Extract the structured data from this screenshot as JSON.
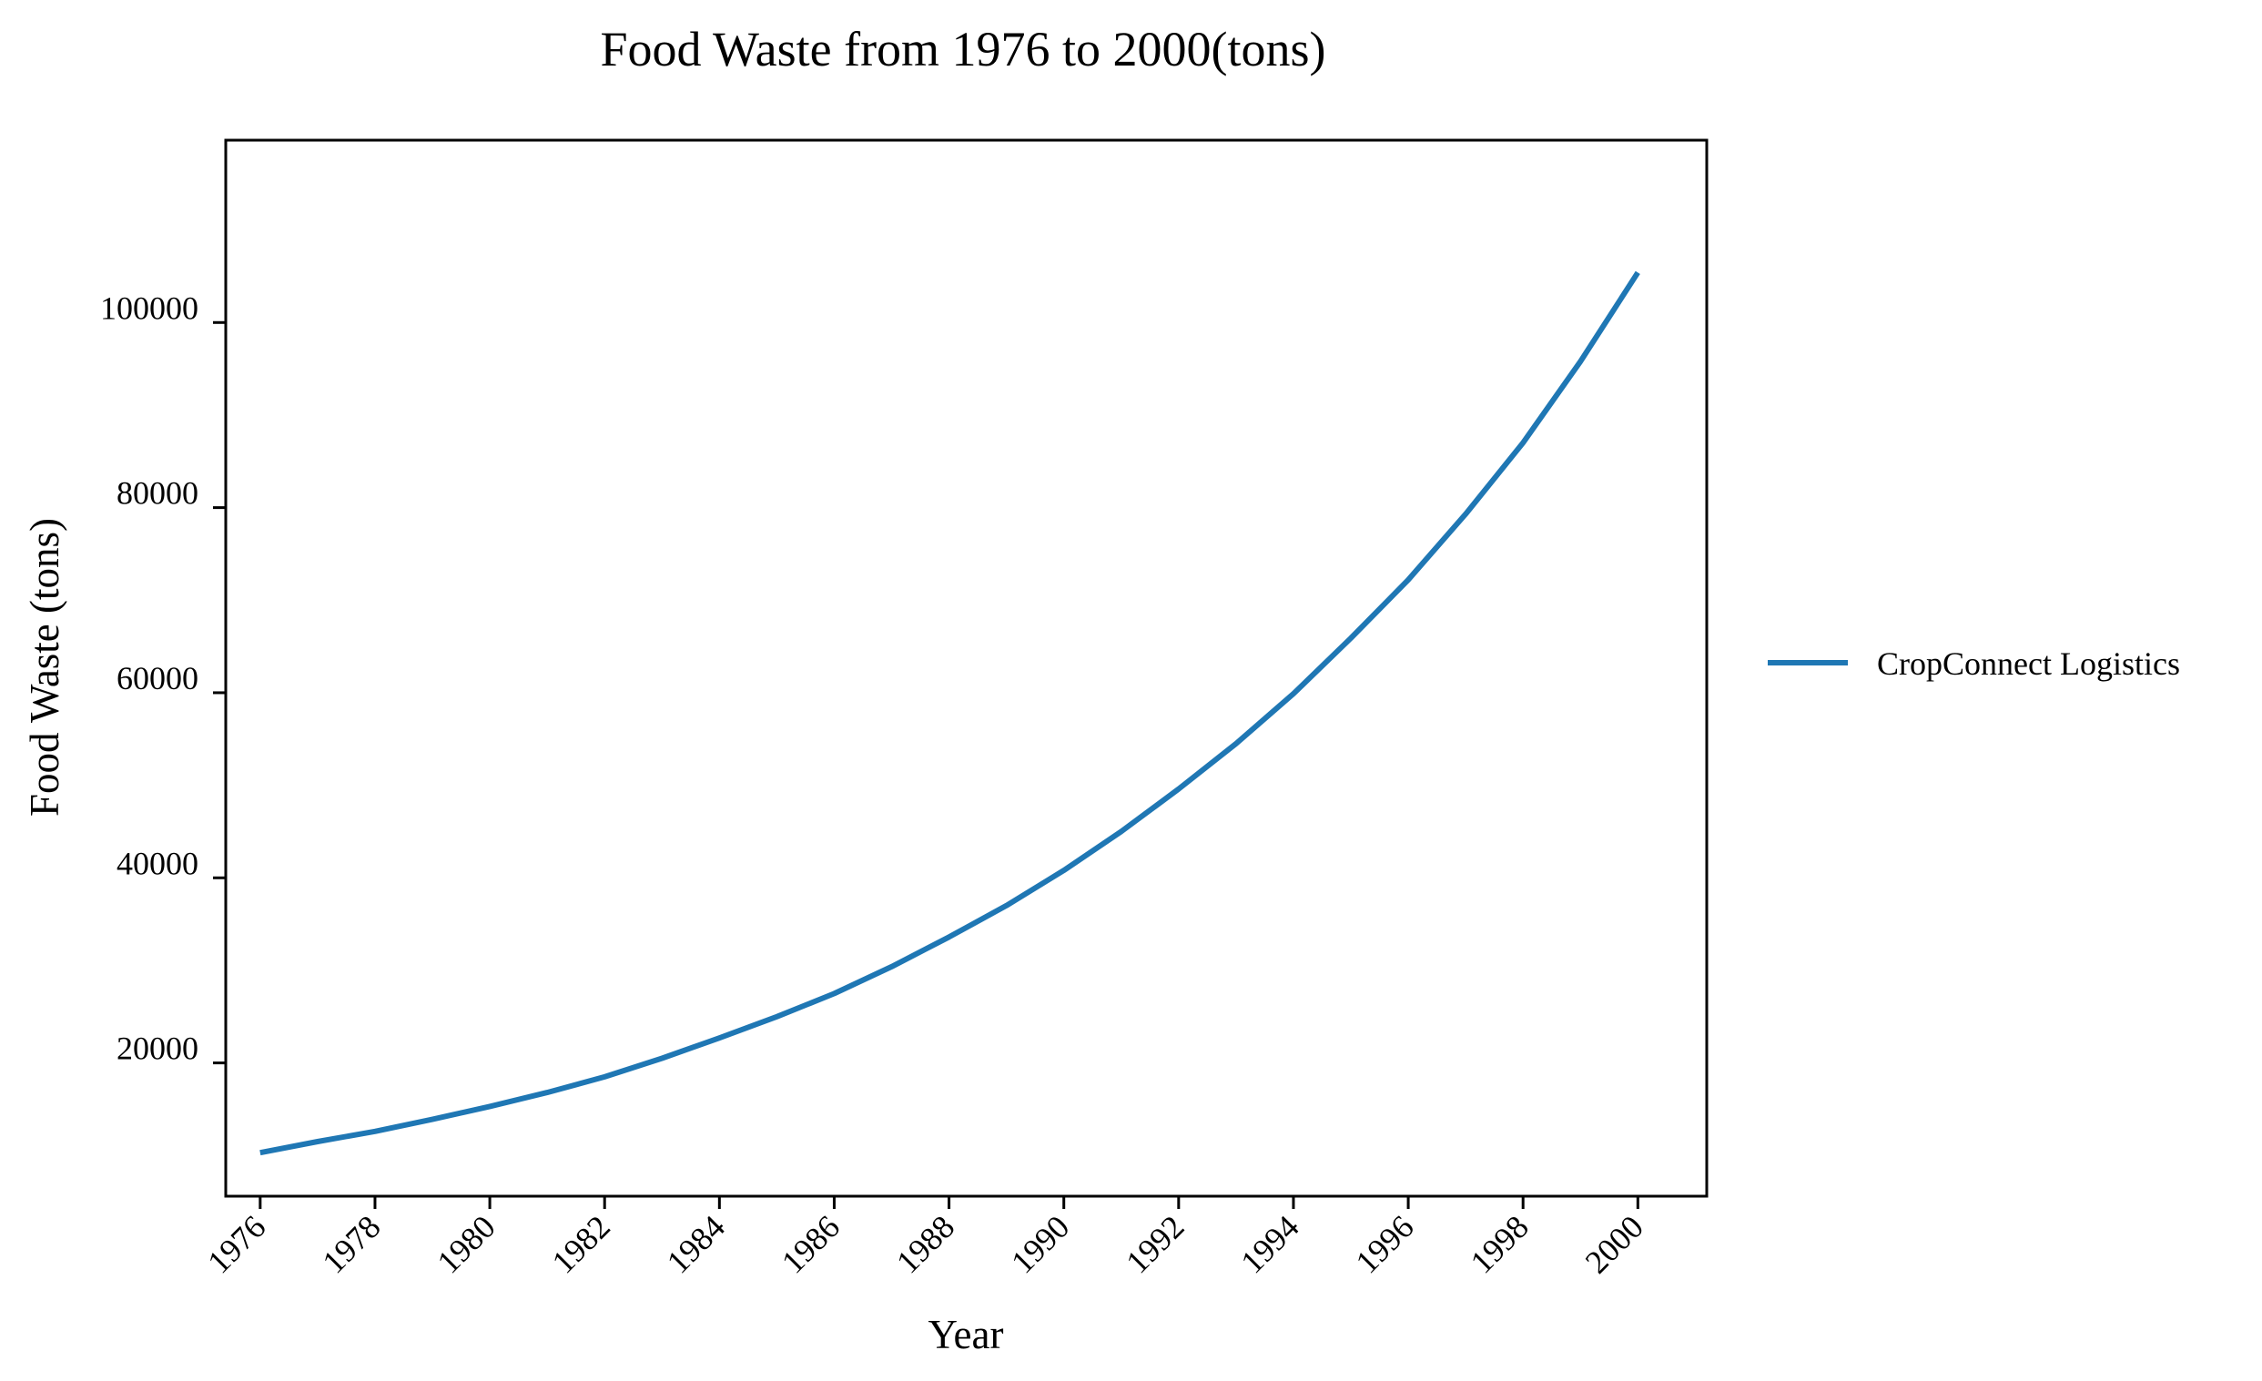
{
  "chart_data": {
    "type": "line",
    "title": "Food Waste from 1976 to 2000(tons)",
    "xlabel": "Year",
    "ylabel": "Food Waste (tons)",
    "x": [
      1976,
      1977,
      1978,
      1979,
      1980,
      1981,
      1982,
      1983,
      1984,
      1985,
      1986,
      1987,
      1988,
      1989,
      1990,
      1991,
      1992,
      1993,
      1994,
      1995,
      1996,
      1997,
      1998,
      1999,
      2000
    ],
    "series": [
      {
        "name": "CropConnect Logistics",
        "color": "#1f77b4",
        "values": [
          10300,
          11500,
          12600,
          13900,
          15300,
          16800,
          18500,
          20500,
          22700,
          25000,
          27500,
          30400,
          33600,
          37000,
          40800,
          45000,
          49600,
          54500,
          59900,
          65900,
          72200,
          79300,
          87000,
          95800,
          105400
        ]
      }
    ],
    "xticks": [
      "1976",
      "1978",
      "1980",
      "1982",
      "1984",
      "1986",
      "1988",
      "1990",
      "1992",
      "1994",
      "1996",
      "1998",
      "2000"
    ],
    "yticks": [
      "20000",
      "40000",
      "60000",
      "80000",
      "100000"
    ],
    "xlim": [
      1975.4,
      2001.2
    ],
    "ylim": [
      5600,
      119700
    ],
    "grid": false,
    "legend_position": "right"
  }
}
